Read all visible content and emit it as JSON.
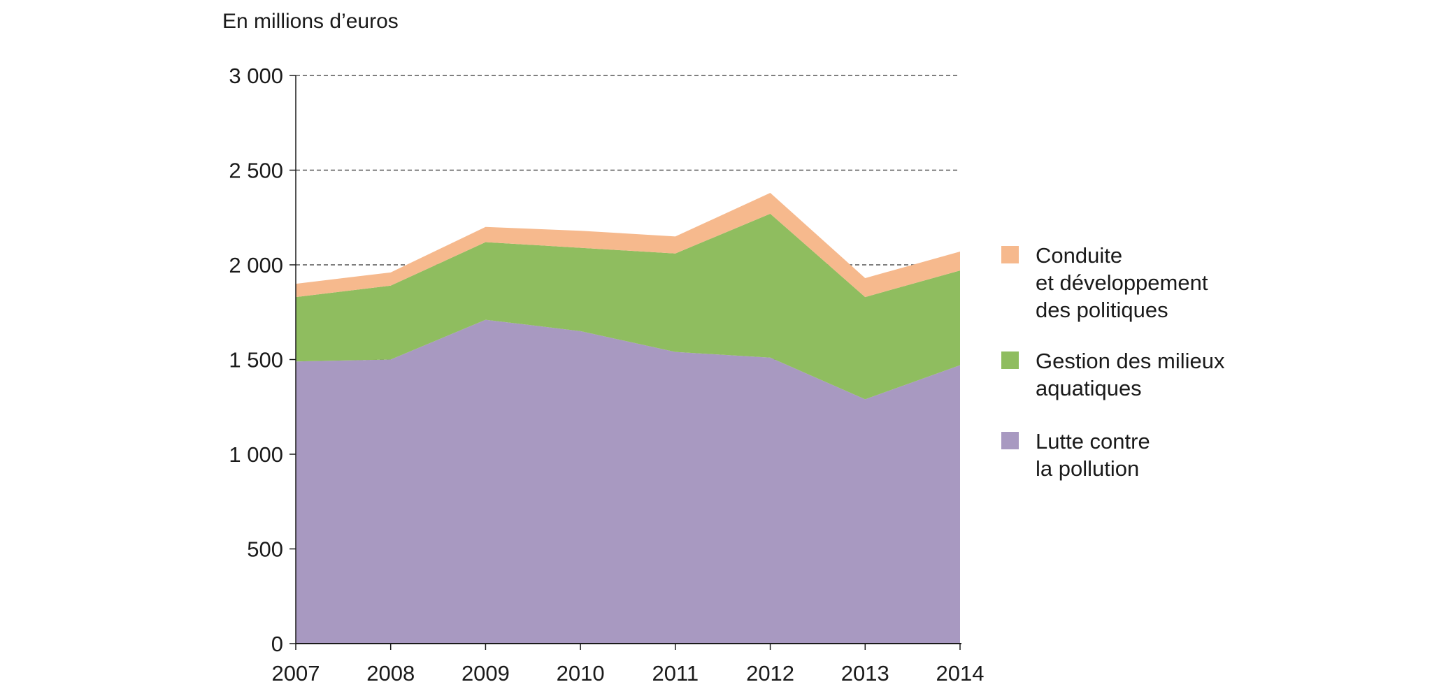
{
  "chart_data": {
    "type": "area",
    "stacked": true,
    "unit_label": "En millions d’euros",
    "x": [
      "2007",
      "2008",
      "2009",
      "2010",
      "2011",
      "2012",
      "2013",
      "2014"
    ],
    "ylim": [
      0,
      3000
    ],
    "yticks": [
      0,
      500,
      1000,
      1500,
      2000,
      2500,
      3000
    ],
    "ytick_labels": [
      "0",
      "500",
      "1 000",
      "1 500",
      "2 000",
      "2 500",
      "3 000"
    ],
    "grid": "dashed horizontal",
    "legend_position": "right",
    "series": [
      {
        "name_lines": [
          "Lutte contre",
          "la pollution"
        ],
        "color": "#a899c1",
        "values": [
          1490,
          1500,
          1710,
          1650,
          1540,
          1510,
          1290,
          1470
        ]
      },
      {
        "name_lines": [
          "Gestion des milieux",
          "aquatiques"
        ],
        "color": "#8fbd5f",
        "values": [
          340,
          390,
          410,
          440,
          520,
          760,
          540,
          500
        ]
      },
      {
        "name_lines": [
          "Conduite",
          "et développement",
          "des politiques"
        ],
        "color": "#f6b98d",
        "values": [
          70,
          70,
          80,
          90,
          90,
          110,
          100,
          100
        ]
      }
    ]
  }
}
